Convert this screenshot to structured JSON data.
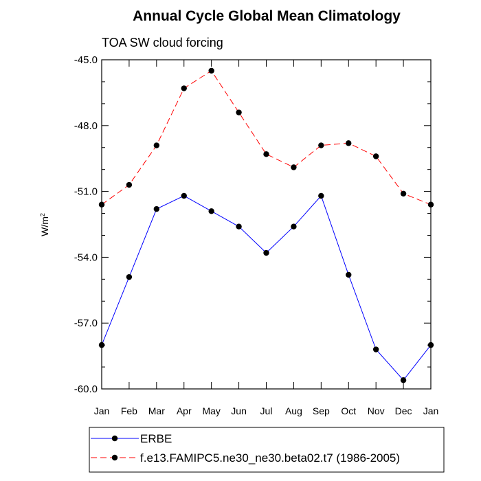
{
  "chart_data": {
    "type": "line",
    "title": "Annual Cycle Global Mean Climatology",
    "subtitle": "TOA SW cloud forcing",
    "ylabel": "W/m",
    "ylabel_sup": "2",
    "xlabel": "",
    "categories": [
      "Jan",
      "Feb",
      "Mar",
      "Apr",
      "May",
      "Jun",
      "Jul",
      "Aug",
      "Sep",
      "Oct",
      "Nov",
      "Dec",
      "Jan"
    ],
    "ylim": [
      -60.0,
      -45.0
    ],
    "yticks": [
      -60.0,
      -57.0,
      -54.0,
      -51.0,
      -48.0,
      -45.0
    ],
    "ytick_labels": [
      "-60.0",
      "-57.0",
      "-54.0",
      "-51.0",
      "-48.0",
      "-45.0"
    ],
    "grid": false,
    "legend_position": "bottom",
    "series": [
      {
        "name": "ERBE",
        "color": "#0000ff",
        "dash": "solid",
        "values": [
          -58.0,
          -54.9,
          -51.8,
          -51.2,
          -51.9,
          -52.6,
          -53.8,
          -52.6,
          -51.2,
          -54.8,
          -58.2,
          -59.6,
          -58.0
        ]
      },
      {
        "name": "f.e13.FAMIPC5.ne30_ne30.beta02.t7 (1986-2005)",
        "color": "#ff0000",
        "dash": "dashed",
        "values": [
          -51.6,
          -50.7,
          -48.9,
          -46.3,
          -45.5,
          -47.4,
          -49.3,
          -49.9,
          -48.9,
          -48.8,
          -49.4,
          -51.1,
          -51.6
        ]
      }
    ]
  }
}
